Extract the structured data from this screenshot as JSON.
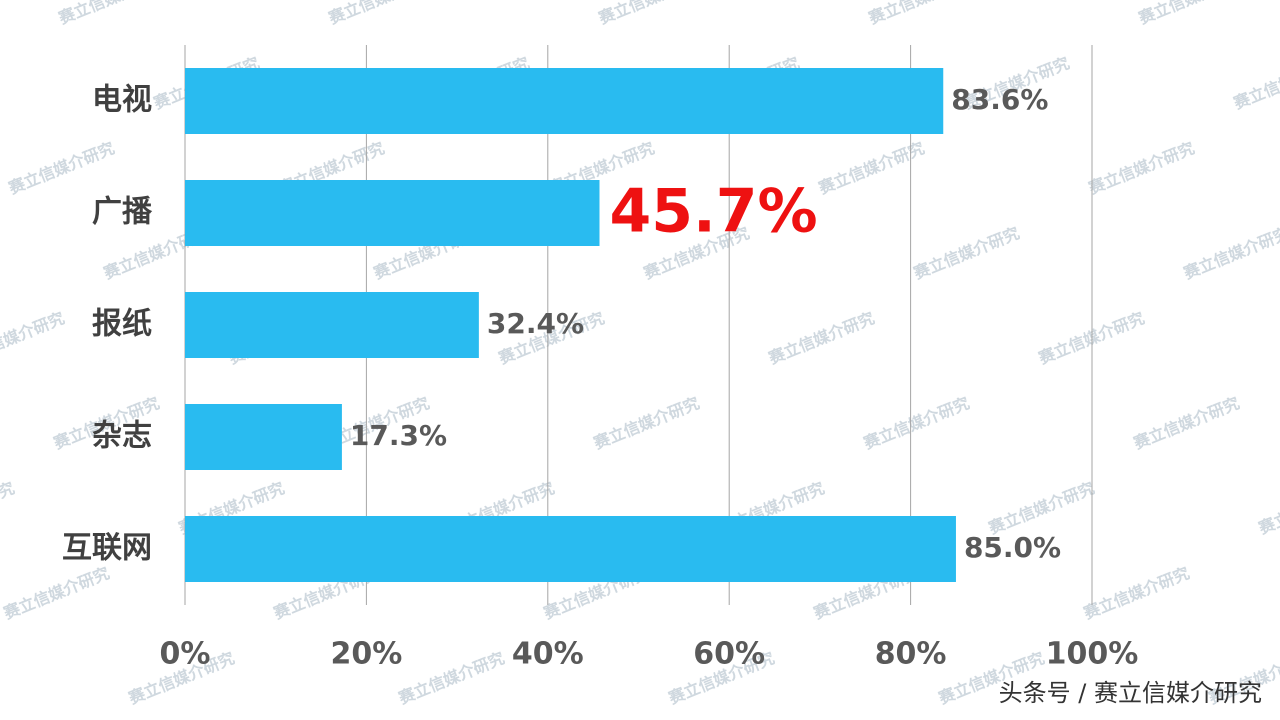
{
  "chart_data": {
    "type": "hbar",
    "categories": [
      "电视",
      "广播",
      "报纸",
      "杂志",
      "互联网"
    ],
    "values": [
      83.6,
      45.7,
      32.4,
      17.3,
      85.0
    ],
    "value_labels": [
      "83.6%",
      "45.7%",
      "32.4%",
      "17.3%",
      "85.0%"
    ],
    "color": "#29bbf0",
    "highlight_index": 1,
    "highlight_color": "#ee1111",
    "xlim": [
      0,
      100
    ],
    "xticks": [
      {
        "value": 0,
        "label": "0%"
      },
      {
        "value": 20,
        "label": "20%"
      },
      {
        "value": 40,
        "label": "40%"
      },
      {
        "value": 60,
        "label": "60%"
      },
      {
        "value": 80,
        "label": "80%"
      },
      {
        "value": 100,
        "label": "100%"
      }
    ],
    "grid": true,
    "watermark": "赛立信媒介研究",
    "footer": "头条号 / 赛立信媒介研究"
  }
}
